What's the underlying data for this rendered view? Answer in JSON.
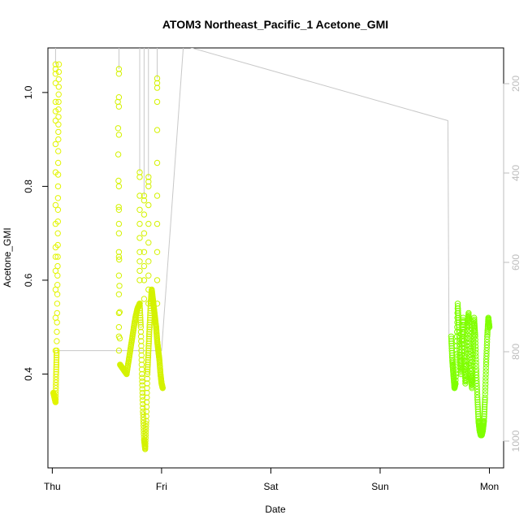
{
  "chart_data": {
    "type": "scatter",
    "title": "ATOM3 Northeast_Pacific_1 Acetone_GMI",
    "xlabel": "Date",
    "ylabel": "Acetone_GMI",
    "x_ticks": [
      "Thu",
      "Fri",
      "Sat",
      "Sun",
      "Mon"
    ],
    "x_tick_values": [
      0,
      1,
      2,
      3,
      4
    ],
    "xlim": [
      -0.04,
      4.13
    ],
    "ylim": [
      0.2,
      1.095
    ],
    "y_ticks": [
      0.4,
      0.6,
      0.8,
      1.0
    ],
    "y_tick_labels": [
      "0.4",
      "0.6",
      "0.8",
      "1.0"
    ],
    "y2_label": "",
    "y2_ticks": [
      200,
      400,
      600,
      800,
      1000
    ],
    "y2_tick_labels": [
      "200",
      "400",
      "600",
      "800",
      "1000"
    ],
    "y2lim": [
      1060,
      120
    ],
    "y2_color": "#bdbdbd",
    "grid": false,
    "legend": "none",
    "point_colors": [
      "#d4f200",
      "#e2f500",
      "#9ae600",
      "#7fff00"
    ],
    "segments": [
      {
        "t": [
          0.01,
          0.02,
          0.03,
          0.035,
          0.04,
          0.05,
          0.055,
          0.06
        ],
        "v": [
          0.36,
          0.35,
          0.34,
          0.4,
          0.45,
          0.65,
          0.9,
          1.06
        ]
      },
      {
        "t": [
          0.6,
          0.62,
          0.65,
          0.68,
          0.7,
          0.72,
          0.74,
          0.76,
          0.78,
          0.8
        ],
        "v": [
          0.98,
          0.42,
          0.41,
          0.4,
          0.43,
          0.46,
          0.49,
          0.52,
          0.54,
          0.55
        ]
      },
      {
        "t": [
          0.8,
          0.81,
          0.82,
          0.83,
          0.84,
          0.85,
          0.86,
          0.87,
          0.88,
          0.89
        ],
        "v": [
          0.55,
          0.5,
          0.4,
          0.32,
          0.26,
          0.24,
          0.3,
          0.4,
          0.45,
          0.5
        ]
      },
      {
        "t": [
          0.89,
          0.9,
          0.91,
          0.92,
          0.93,
          0.94,
          0.95,
          0.96,
          0.97,
          0.98,
          0.99,
          1.0,
          1.01
        ],
        "v": [
          0.5,
          0.55,
          0.58,
          0.56,
          0.54,
          0.52,
          0.5,
          0.47,
          0.45,
          0.43,
          0.4,
          0.38,
          0.37
        ]
      },
      {
        "t": [
          3.65,
          3.66,
          3.67,
          3.68,
          3.69,
          3.7,
          3.71,
          3.72,
          3.73,
          3.74,
          3.75,
          3.76,
          3.77,
          3.78,
          3.79,
          3.8,
          3.81,
          3.82,
          3.83,
          3.84,
          3.85,
          3.86,
          3.87,
          3.88,
          3.89,
          3.9,
          3.91,
          3.92,
          3.93,
          3.94,
          3.95,
          3.96,
          3.97,
          3.98,
          3.99,
          4.0
        ],
        "v": [
          0.48,
          0.43,
          0.4,
          0.37,
          0.38,
          0.45,
          0.55,
          0.5,
          0.44,
          0.4,
          0.47,
          0.52,
          0.44,
          0.38,
          0.42,
          0.5,
          0.53,
          0.46,
          0.4,
          0.37,
          0.45,
          0.52,
          0.48,
          0.41,
          0.35,
          0.3,
          0.28,
          0.27,
          0.27,
          0.28,
          0.3,
          0.35,
          0.42,
          0.48,
          0.52,
          0.5
        ]
      }
    ],
    "spikes": [
      {
        "t": 0.03,
        "v": [
          0.45,
          0.52,
          0.58,
          0.62,
          0.65,
          0.67,
          0.72,
          0.76,
          0.83,
          0.89,
          0.94,
          0.96,
          0.98,
          1.02,
          1.04,
          1.05,
          1.06
        ]
      },
      {
        "t": 0.61,
        "v": [
          0.45,
          0.48,
          0.5,
          0.53,
          0.57,
          0.61,
          0.65,
          0.66,
          0.72,
          0.75,
          0.8,
          0.91,
          0.97,
          0.99,
          1.04,
          1.05
        ]
      },
      {
        "t": 0.8,
        "v": [
          0.6,
          0.62,
          0.64,
          0.66,
          0.69,
          0.72,
          0.75,
          0.78,
          0.82,
          0.83
        ]
      },
      {
        "t": 0.84,
        "v": [
          0.56,
          0.6,
          0.63,
          0.66,
          0.7,
          0.74,
          0.77,
          0.78
        ]
      },
      {
        "t": 0.88,
        "v": [
          0.55,
          0.58,
          0.61,
          0.64,
          0.68,
          0.72,
          0.76,
          0.8,
          0.81,
          0.82
        ]
      },
      {
        "t": 0.96,
        "v": [
          0.55,
          0.6,
          0.66,
          0.72,
          0.78,
          0.85,
          0.92,
          0.98,
          1.01,
          1.02,
          1.03
        ]
      }
    ],
    "ground_line": {
      "t": [
        0.02,
        0.03,
        0.6,
        0.61,
        0.92,
        0.93,
        0.97,
        1.0,
        1.2,
        3.62,
        3.63
      ],
      "v": [
        0.45,
        0.45,
        0.45,
        0.45,
        0.45,
        0.45,
        0.45,
        0.45,
        1.1,
        0.94,
        0.48
      ],
      "axis": "left"
    }
  }
}
